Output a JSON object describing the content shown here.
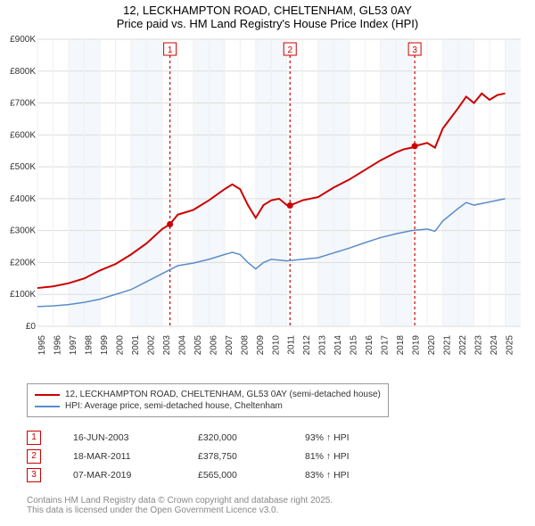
{
  "title": {
    "line1": "12, LECKHAMPTON ROAD, CHELTENHAM, GL53 0AY",
    "line2": "Price paid vs. HM Land Registry's House Price Index (HPI)"
  },
  "chart": {
    "type": "line",
    "background_color": "#ffffff",
    "plot_band_color": "#f4f7fb",
    "grid_color": "#dddddd",
    "xlight_grid_color": "#f0f0f0",
    "ylim": [
      0,
      900000
    ],
    "ytick_step": 100000,
    "ytick_labels": [
      "£0",
      "£100K",
      "£200K",
      "£300K",
      "£400K",
      "£500K",
      "£600K",
      "£700K",
      "£800K",
      "£900K"
    ],
    "x_years": [
      1995,
      1996,
      1997,
      1998,
      1999,
      2000,
      2001,
      2002,
      2003,
      2004,
      2005,
      2006,
      2007,
      2008,
      2009,
      2010,
      2011,
      2012,
      2013,
      2014,
      2015,
      2016,
      2017,
      2018,
      2019,
      2020,
      2021,
      2022,
      2023,
      2024,
      2025
    ],
    "series": [
      {
        "name": "property",
        "color": "#cc0000",
        "width": 2,
        "points": [
          [
            1995,
            120000
          ],
          [
            1996,
            125000
          ],
          [
            1997,
            135000
          ],
          [
            1998,
            150000
          ],
          [
            1999,
            175000
          ],
          [
            2000,
            195000
          ],
          [
            2001,
            225000
          ],
          [
            2002,
            260000
          ],
          [
            2003,
            305000
          ],
          [
            2003.5,
            320000
          ],
          [
            2004,
            350000
          ],
          [
            2005,
            365000
          ],
          [
            2006,
            395000
          ],
          [
            2007,
            430000
          ],
          [
            2007.5,
            445000
          ],
          [
            2008,
            430000
          ],
          [
            2008.5,
            380000
          ],
          [
            2009,
            340000
          ],
          [
            2009.5,
            380000
          ],
          [
            2010,
            395000
          ],
          [
            2010.5,
            400000
          ],
          [
            2011,
            380000
          ],
          [
            2011.2,
            378750
          ],
          [
            2012,
            395000
          ],
          [
            2013,
            405000
          ],
          [
            2014,
            435000
          ],
          [
            2015,
            460000
          ],
          [
            2016,
            490000
          ],
          [
            2017,
            520000
          ],
          [
            2018,
            545000
          ],
          [
            2018.5,
            555000
          ],
          [
            2019,
            560000
          ],
          [
            2019.2,
            565000
          ],
          [
            2020,
            575000
          ],
          [
            2020.5,
            560000
          ],
          [
            2021,
            620000
          ],
          [
            2022,
            685000
          ],
          [
            2022.5,
            720000
          ],
          [
            2023,
            700000
          ],
          [
            2023.5,
            730000
          ],
          [
            2024,
            710000
          ],
          [
            2024.5,
            725000
          ],
          [
            2025,
            730000
          ]
        ]
      },
      {
        "name": "hpi",
        "color": "#5b8dc9",
        "width": 1.5,
        "points": [
          [
            1995,
            62000
          ],
          [
            1996,
            64000
          ],
          [
            1997,
            68000
          ],
          [
            1998,
            75000
          ],
          [
            1999,
            85000
          ],
          [
            2000,
            100000
          ],
          [
            2001,
            115000
          ],
          [
            2002,
            140000
          ],
          [
            2003,
            165000
          ],
          [
            2004,
            190000
          ],
          [
            2005,
            198000
          ],
          [
            2006,
            210000
          ],
          [
            2007,
            225000
          ],
          [
            2007.5,
            232000
          ],
          [
            2008,
            225000
          ],
          [
            2008.5,
            200000
          ],
          [
            2009,
            180000
          ],
          [
            2009.5,
            200000
          ],
          [
            2010,
            210000
          ],
          [
            2011,
            205000
          ],
          [
            2012,
            210000
          ],
          [
            2013,
            215000
          ],
          [
            2014,
            230000
          ],
          [
            2015,
            245000
          ],
          [
            2016,
            262000
          ],
          [
            2017,
            278000
          ],
          [
            2018,
            290000
          ],
          [
            2019,
            300000
          ],
          [
            2020,
            305000
          ],
          [
            2020.5,
            298000
          ],
          [
            2021,
            330000
          ],
          [
            2022,
            370000
          ],
          [
            2022.5,
            388000
          ],
          [
            2023,
            380000
          ],
          [
            2024,
            390000
          ],
          [
            2025,
            400000
          ]
        ]
      }
    ],
    "event_markers": [
      {
        "num": "1",
        "year": 2003.5,
        "color": "#cc0000",
        "value": 320000
      },
      {
        "num": "2",
        "year": 2011.2,
        "color": "#cc0000",
        "value": 378750
      },
      {
        "num": "3",
        "year": 2019.2,
        "color": "#cc0000",
        "value": 565000
      }
    ]
  },
  "legend": {
    "items": [
      {
        "color": "#cc0000",
        "label": "12, LECKHAMPTON ROAD, CHELTENHAM, GL53 0AY (semi-detached house)"
      },
      {
        "color": "#5b8dc9",
        "label": "HPI: Average price, semi-detached house, Cheltenham"
      }
    ]
  },
  "events_table": {
    "rows": [
      {
        "num": "1",
        "color": "#cc0000",
        "date": "16-JUN-2003",
        "price": "£320,000",
        "hpi": "93% ↑ HPI"
      },
      {
        "num": "2",
        "color": "#cc0000",
        "date": "18-MAR-2011",
        "price": "£378,750",
        "hpi": "81% ↑ HPI"
      },
      {
        "num": "3",
        "color": "#cc0000",
        "date": "07-MAR-2019",
        "price": "£565,000",
        "hpi": "83% ↑ HPI"
      }
    ]
  },
  "copyright": {
    "line1": "Contains HM Land Registry data © Crown copyright and database right 2025.",
    "line2": "This data is licensed under the Open Government Licence v3.0."
  }
}
